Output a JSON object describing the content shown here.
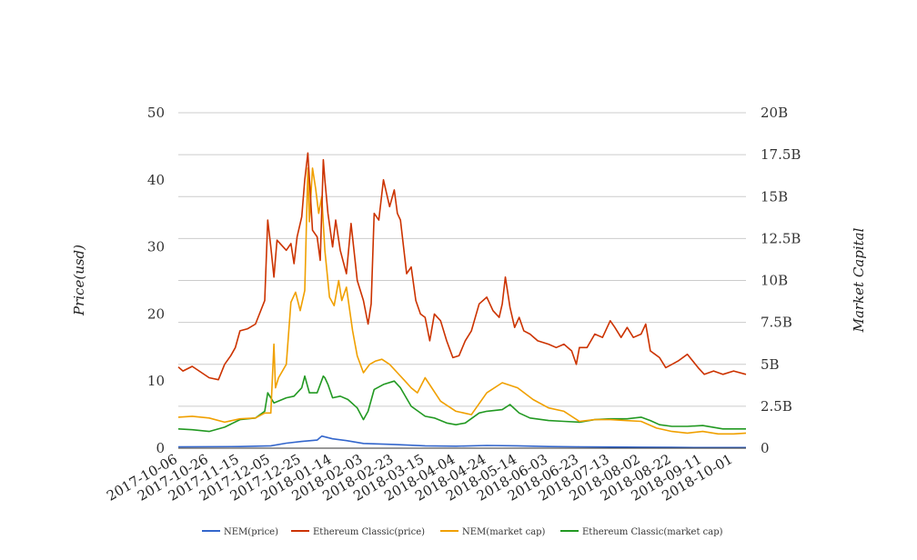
{
  "chart_data": {
    "type": "line",
    "title": "",
    "ylabel": "Price(usd)",
    "y2label": "Market Capital",
    "ylim": [
      0,
      50
    ],
    "y2lim": [
      0,
      20000000000
    ],
    "yticks": [
      "0",
      "10",
      "20",
      "30",
      "40",
      "50"
    ],
    "y2ticks": [
      "0",
      "2.5B",
      "5B",
      "7.5B",
      "10B",
      "12.5B",
      "15B",
      "17.5B",
      "20B"
    ],
    "x_ticks": [
      "2017-10-06",
      "2017-10-26",
      "2017-11-15",
      "2017-12-05",
      "2017-12-25",
      "2018-01-14",
      "2018-02-03",
      "2018-02-23",
      "2018-03-15",
      "2018-04-04",
      "2018-04-24",
      "2018-05-14",
      "2018-06-03",
      "2018-06-23",
      "2018-07-13",
      "2018-08-02",
      "2018-08-22",
      "2018-09-11",
      "2018-10-01"
    ],
    "x_range": [
      "2017-10-06",
      "2018-10-09"
    ],
    "grid": true,
    "legend_position": "bottom",
    "series": [
      {
        "name": "NEM(price)",
        "axis": "left",
        "color": "#3366cc",
        "x": [
          "2017-10-06",
          "2017-11-15",
          "2017-12-05",
          "2017-12-15",
          "2017-12-25",
          "2018-01-04",
          "2018-01-07",
          "2018-01-14",
          "2018-01-24",
          "2018-02-03",
          "2018-02-23",
          "2018-03-15",
          "2018-04-04",
          "2018-04-24",
          "2018-05-14",
          "2018-06-03",
          "2018-06-23",
          "2018-07-13",
          "2018-08-02",
          "2018-08-22",
          "2018-09-11",
          "2018-10-09"
        ],
        "y": [
          0.2,
          0.25,
          0.35,
          0.75,
          1.0,
          1.2,
          1.8,
          1.4,
          1.1,
          0.7,
          0.55,
          0.35,
          0.3,
          0.4,
          0.35,
          0.25,
          0.2,
          0.18,
          0.15,
          0.12,
          0.1,
          0.1
        ]
      },
      {
        "name": "Ethereum Classic(price)",
        "axis": "left",
        "color": "#cc3300",
        "x": [
          "2017-10-06",
          "2017-10-09",
          "2017-10-15",
          "2017-10-26",
          "2017-11-01",
          "2017-11-05",
          "2017-11-09",
          "2017-11-12",
          "2017-11-15",
          "2017-11-20",
          "2017-11-25",
          "2017-12-01",
          "2017-12-03",
          "2017-12-05",
          "2017-12-07",
          "2017-12-09",
          "2017-12-15",
          "2017-12-18",
          "2017-12-20",
          "2017-12-22",
          "2017-12-25",
          "2017-12-27",
          "2017-12-29",
          "2018-01-01",
          "2018-01-04",
          "2018-01-06",
          "2018-01-08",
          "2018-01-09",
          "2018-01-11",
          "2018-01-14",
          "2018-01-16",
          "2018-01-19",
          "2018-01-23",
          "2018-01-26",
          "2018-01-30",
          "2018-02-03",
          "2018-02-06",
          "2018-02-08",
          "2018-02-10",
          "2018-02-13",
          "2018-02-16",
          "2018-02-20",
          "2018-02-23",
          "2018-02-25",
          "2018-02-27",
          "2018-03-03",
          "2018-03-06",
          "2018-03-09",
          "2018-03-12",
          "2018-03-15",
          "2018-03-18",
          "2018-03-21",
          "2018-03-25",
          "2018-03-29",
          "2018-04-02",
          "2018-04-06",
          "2018-04-10",
          "2018-04-14",
          "2018-04-19",
          "2018-04-24",
          "2018-04-28",
          "2018-05-02",
          "2018-05-04",
          "2018-05-06",
          "2018-05-09",
          "2018-05-12",
          "2018-05-15",
          "2018-05-18",
          "2018-05-22",
          "2018-05-27",
          "2018-06-03",
          "2018-06-08",
          "2018-06-13",
          "2018-06-18",
          "2018-06-21",
          "2018-06-23",
          "2018-06-28",
          "2018-07-03",
          "2018-07-08",
          "2018-07-13",
          "2018-07-16",
          "2018-07-20",
          "2018-07-24",
          "2018-07-28",
          "2018-08-02",
          "2018-08-05",
          "2018-08-08",
          "2018-08-11",
          "2018-08-14",
          "2018-08-18",
          "2018-08-22",
          "2018-08-26",
          "2018-09-01",
          "2018-09-08",
          "2018-09-12",
          "2018-09-18",
          "2018-09-24",
          "2018-10-01",
          "2018-10-09"
        ],
        "y": [
          12.1,
          11.5,
          12.2,
          10.5,
          10.2,
          12.5,
          13.8,
          15.0,
          17.5,
          17.8,
          18.5,
          22.0,
          34.0,
          30.0,
          25.5,
          31.0,
          29.5,
          30.5,
          27.5,
          31.5,
          34.5,
          40.0,
          44.0,
          32.5,
          31.5,
          28.0,
          43.0,
          40.0,
          35.0,
          30.0,
          34.0,
          29.5,
          26.0,
          33.5,
          25.0,
          22.0,
          18.5,
          21.5,
          35.0,
          34.0,
          40.0,
          36.0,
          38.5,
          35.0,
          34.0,
          26.0,
          27.0,
          22.0,
          20.0,
          19.5,
          16.0,
          20.0,
          19.0,
          16.0,
          13.5,
          13.8,
          16.0,
          17.5,
          21.5,
          22.5,
          20.5,
          19.5,
          21.5,
          25.5,
          21.0,
          18.0,
          19.5,
          17.5,
          17.0,
          16.0,
          15.5,
          15.0,
          15.5,
          14.5,
          12.5,
          15.0,
          15.0,
          17.0,
          16.5,
          19.0,
          18.0,
          16.5,
          18.0,
          16.5,
          17.0,
          18.5,
          14.5,
          14.0,
          13.5,
          12.0,
          12.5,
          13.0,
          14.0,
          12.0,
          11.0,
          11.5,
          11.0,
          11.5,
          11.0
        ]
      },
      {
        "name": "NEM(market cap)",
        "axis": "right",
        "color": "#f0a000",
        "x": [
          "2017-10-06",
          "2017-10-15",
          "2017-10-26",
          "2017-11-05",
          "2017-11-15",
          "2017-11-25",
          "2017-12-01",
          "2017-12-05",
          "2017-12-07",
          "2017-12-08",
          "2017-12-10",
          "2017-12-15",
          "2017-12-18",
          "2017-12-21",
          "2017-12-24",
          "2017-12-27",
          "2017-12-29",
          "2017-12-30",
          "2018-01-01",
          "2018-01-03",
          "2018-01-05",
          "2018-01-07",
          "2018-01-09",
          "2018-01-12",
          "2018-01-15",
          "2018-01-18",
          "2018-01-20",
          "2018-01-23",
          "2018-01-27",
          "2018-01-30",
          "2018-02-03",
          "2018-02-07",
          "2018-02-11",
          "2018-02-15",
          "2018-02-20",
          "2018-02-25",
          "2018-03-02",
          "2018-03-06",
          "2018-03-10",
          "2018-03-15",
          "2018-03-25",
          "2018-04-04",
          "2018-04-14",
          "2018-04-24",
          "2018-05-04",
          "2018-05-14",
          "2018-05-24",
          "2018-06-03",
          "2018-06-13",
          "2018-06-23",
          "2018-07-03",
          "2018-07-13",
          "2018-07-23",
          "2018-08-02",
          "2018-08-12",
          "2018-08-22",
          "2018-09-01",
          "2018-09-11",
          "2018-09-21",
          "2018-10-01",
          "2018-10-09"
        ],
        "y": [
          1850000000,
          1900000000,
          1800000000,
          1550000000,
          1750000000,
          1800000000,
          2100000000,
          2100000000,
          6200000000,
          3600000000,
          4200000000,
          5000000000,
          8700000000,
          9300000000,
          8200000000,
          9400000000,
          16700000000,
          13500000000,
          16700000000,
          15500000000,
          14000000000,
          15000000000,
          11800000000,
          9000000000,
          8500000000,
          10000000000,
          8800000000,
          9600000000,
          7000000000,
          5500000000,
          4500000000,
          5000000000,
          5200000000,
          5300000000,
          5000000000,
          4500000000,
          4000000000,
          3600000000,
          3300000000,
          4200000000,
          2800000000,
          2200000000,
          2000000000,
          3300000000,
          3900000000,
          3600000000,
          2900000000,
          2400000000,
          2200000000,
          1600000000,
          1700000000,
          1700000000,
          1650000000,
          1600000000,
          1200000000,
          1000000000,
          900000000,
          1000000000,
          850000000,
          850000000,
          900000000
        ]
      },
      {
        "name": "Ethereum Classic(market cap)",
        "axis": "right",
        "color": "#229922",
        "x": [
          "2017-10-06",
          "2017-10-15",
          "2017-10-26",
          "2017-11-05",
          "2017-11-15",
          "2017-11-25",
          "2017-12-01",
          "2017-12-03",
          "2017-12-07",
          "2017-12-15",
          "2017-12-20",
          "2017-12-25",
          "2017-12-27",
          "2017-12-30",
          "2018-01-04",
          "2018-01-08",
          "2018-01-09",
          "2018-01-11",
          "2018-01-14",
          "2018-01-19",
          "2018-01-24",
          "2018-01-30",
          "2018-02-03",
          "2018-02-06",
          "2018-02-10",
          "2018-02-16",
          "2018-02-23",
          "2018-02-27",
          "2018-03-06",
          "2018-03-15",
          "2018-03-21",
          "2018-03-29",
          "2018-04-04",
          "2018-04-10",
          "2018-04-19",
          "2018-04-24",
          "2018-05-04",
          "2018-05-09",
          "2018-05-15",
          "2018-05-22",
          "2018-06-03",
          "2018-06-13",
          "2018-06-23",
          "2018-07-03",
          "2018-07-13",
          "2018-07-24",
          "2018-08-02",
          "2018-08-08",
          "2018-08-14",
          "2018-08-22",
          "2018-09-01",
          "2018-09-11",
          "2018-09-24",
          "2018-10-01",
          "2018-10-09"
        ],
        "y": [
          1150000000,
          1100000000,
          1000000000,
          1250000000,
          1700000000,
          1800000000,
          2200000000,
          3300000000,
          2700000000,
          3000000000,
          3100000000,
          3600000000,
          4300000000,
          3300000000,
          3300000000,
          4300000000,
          4200000000,
          3800000000,
          3000000000,
          3100000000,
          2900000000,
          2400000000,
          1700000000,
          2200000000,
          3500000000,
          3800000000,
          4000000000,
          3600000000,
          2500000000,
          1900000000,
          1800000000,
          1500000000,
          1400000000,
          1500000000,
          2100000000,
          2200000000,
          2300000000,
          2600000000,
          2100000000,
          1800000000,
          1650000000,
          1600000000,
          1550000000,
          1700000000,
          1750000000,
          1750000000,
          1850000000,
          1650000000,
          1400000000,
          1300000000,
          1300000000,
          1350000000,
          1150000000,
          1150000000,
          1150000000
        ]
      }
    ]
  }
}
